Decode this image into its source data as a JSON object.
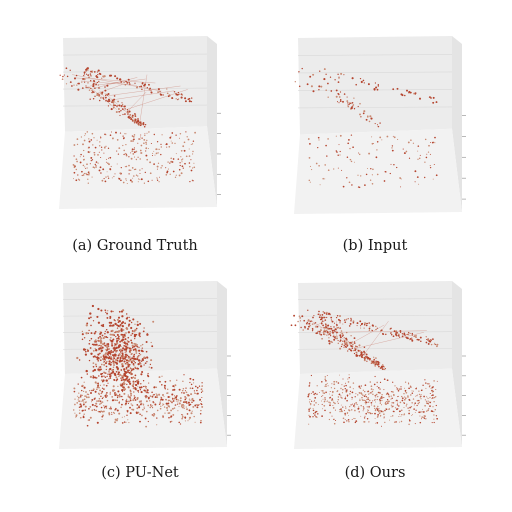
{
  "figure": {
    "panels": [
      {
        "id": "a",
        "caption": "(a) Ground Truth",
        "variant": "gt"
      },
      {
        "id": "b",
        "caption": "(b) Input",
        "variant": "input"
      },
      {
        "id": "c",
        "caption": "(c) PU-Net",
        "variant": "punet"
      },
      {
        "id": "d",
        "caption": "(d) Ours",
        "variant": "ours"
      }
    ],
    "colors": {
      "point": "#b5452f",
      "point_light": "#c98a72",
      "floor": "#f2f2f2",
      "wall": "#ececec",
      "grid": "#d9d9d9",
      "tick": "#9a9a9a"
    }
  }
}
